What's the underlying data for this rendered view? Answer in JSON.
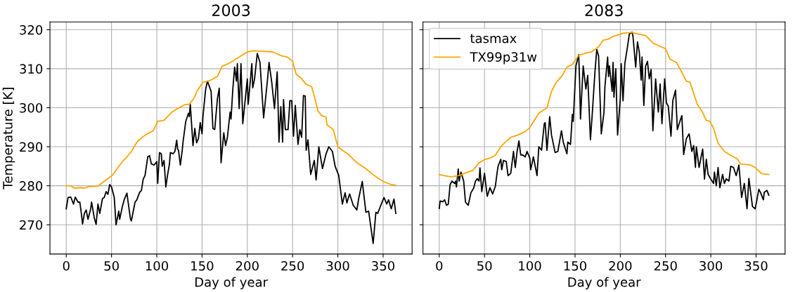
{
  "chart_data": [
    {
      "type": "line",
      "title": "2003",
      "xlabel": "Day of year",
      "ylabel": "Temperature [K]",
      "xlim": [
        -18,
        382
      ],
      "ylim": [
        262.5,
        322
      ],
      "xticks": [
        0,
        50,
        100,
        150,
        200,
        250,
        300,
        350
      ],
      "yticks": [
        270,
        280,
        290,
        300,
        310,
        320
      ],
      "grid": true,
      "series": [
        {
          "color": "#000000",
          "x": [
            0,
            2,
            5,
            8,
            10,
            13,
            15,
            17,
            18,
            20,
            22,
            24,
            27,
            28,
            31,
            33,
            35,
            37,
            40,
            42,
            44,
            46,
            48,
            50,
            53,
            54,
            55,
            58,
            59,
            62,
            64,
            67,
            69,
            71,
            72,
            74,
            76,
            78,
            81,
            83,
            85,
            87,
            90,
            92,
            94,
            97,
            100,
            101,
            103,
            105,
            106,
            108,
            110,
            112,
            114,
            115,
            118,
            120,
            122,
            123,
            124,
            126,
            128,
            129,
            132,
            135,
            136,
            137,
            140,
            142,
            144,
            146,
            148,
            150,
            151,
            154,
            156,
            160,
            162,
            164,
            167,
            169,
            171,
            174,
            176,
            178,
            181,
            182,
            184,
            186,
            188,
            189,
            191,
            193,
            195,
            200,
            201,
            205,
            206,
            208,
            211,
            214,
            218,
            222,
            224,
            227,
            230,
            233,
            235,
            237,
            239,
            240,
            242,
            245,
            247,
            249,
            251,
            253,
            256,
            258,
            260,
            262,
            264,
            265,
            267,
            270,
            274,
            276,
            279,
            283,
            287,
            290,
            294,
            297,
            301,
            305,
            308,
            310,
            313,
            317,
            321,
            323,
            327,
            331,
            334,
            339,
            342,
            344,
            348,
            351,
            354,
            356,
            359,
            362,
            364
          ],
          "values": [
            274.1,
            277,
            277.1,
            275.3,
            277.1,
            275.8,
            275.8,
            272.3,
            270.2,
            272.9,
            273.8,
            271.4,
            274.1,
            275.8,
            271.7,
            270.1,
            275.3,
            272.9,
            276.7,
            277,
            278.5,
            277.8,
            280.3,
            279.7,
            277,
            273.5,
            270,
            273.5,
            271.4,
            274.7,
            276.4,
            278.1,
            274.7,
            271.4,
            271,
            273.5,
            275.8,
            276.4,
            278.3,
            278.8,
            281.7,
            282.6,
            287.4,
            287.7,
            285.6,
            285.3,
            286.2,
            280.6,
            288.5,
            288.2,
            285,
            286.5,
            279.7,
            282.9,
            285.6,
            288.5,
            288.2,
            288.8,
            291.7,
            289.4,
            289.1,
            285.3,
            288.8,
            291.2,
            296.5,
            298.6,
            297.7,
            300.9,
            290.3,
            294.7,
            291,
            292.1,
            296.2,
            293.3,
            297.7,
            304.8,
            306.8,
            304.2,
            294.7,
            294.4,
            302.4,
            305,
            285.9,
            293.6,
            290.3,
            292.4,
            298.9,
            297.1,
            304.8,
            310.4,
            306.8,
            311.3,
            299.8,
            311.3,
            295.9,
            307.4,
            300.9,
            311.3,
            305.1,
            307.4,
            313.9,
            311.6,
            297.4,
            306.5,
            311.6,
            306.5,
            299.8,
            309.2,
            291.2,
            300.3,
            291.2,
            302.1,
            294.4,
            294.4,
            301.8,
            301.8,
            292.7,
            300.6,
            290.6,
            294.4,
            292.4,
            303.1,
            303,
            289.1,
            291.8,
            282.9,
            286.5,
            281.5,
            290,
            284.4,
            288.2,
            290,
            288.8,
            285,
            282.6,
            275.3,
            278.2,
            275.6,
            277.9,
            275,
            273.8,
            276.7,
            281.1,
            273.2,
            273.5,
            265.2,
            273.2,
            272.9,
            275.3,
            277,
            275.3,
            276.4,
            274.1,
            276.6,
            272.9
          ]
        },
        {
          "color": "#ffa500",
          "x": [
            0,
            5,
            9,
            15,
            20,
            25,
            35,
            40,
            47,
            51,
            55,
            62,
            67,
            72,
            75,
            79,
            85,
            91,
            96,
            101,
            108,
            113,
            117,
            123,
            131,
            136,
            141,
            145,
            151,
            159,
            167,
            172,
            179,
            187,
            195,
            200,
            206,
            215,
            228,
            232,
            238,
            244,
            250,
            254,
            259,
            265,
            271,
            274,
            278,
            282,
            287,
            288,
            295,
            300,
            305,
            312,
            317,
            323,
            331,
            337,
            346,
            351,
            359,
            364
          ],
          "values": [
            280,
            280,
            279.4,
            279.5,
            279.4,
            279.8,
            279.9,
            280.8,
            282,
            282.7,
            284,
            286.2,
            287.4,
            288.8,
            290,
            291.5,
            292.6,
            293.5,
            294.1,
            296.5,
            296.8,
            298,
            298.9,
            299.8,
            300.8,
            300.9,
            302.4,
            304.5,
            306.5,
            307,
            308,
            310.6,
            311.3,
            312.4,
            313.6,
            314.3,
            314.6,
            314.5,
            314.3,
            313.9,
            313.3,
            313,
            311.9,
            308.6,
            307.7,
            306,
            305.4,
            303,
            299.2,
            298,
            297.6,
            295.6,
            294.4,
            290,
            289.1,
            288,
            286.8,
            285.6,
            284.4,
            283.2,
            281.7,
            281,
            280.3,
            280.1
          ]
        }
      ]
    },
    {
      "type": "line",
      "title": "2083",
      "xlabel": "Day of year",
      "xlim": [
        -18,
        382
      ],
      "ylim": [
        262.5,
        322
      ],
      "xticks": [
        0,
        50,
        100,
        150,
        200,
        250,
        300,
        350
      ],
      "yticks": [
        270,
        280,
        290,
        300,
        310,
        320
      ],
      "tick_labels": "x",
      "grid": true,
      "legend": "top left",
      "series": [
        {
          "name": "tasmax",
          "color": "#000000",
          "x": [
            0,
            1,
            4,
            6,
            8,
            10,
            12,
            14,
            17,
            18,
            19,
            21,
            22,
            24,
            27,
            29,
            32,
            35,
            38,
            40,
            42,
            44,
            45,
            47,
            50,
            53,
            56,
            59,
            62,
            64,
            65,
            68,
            69,
            71,
            74,
            76,
            79,
            82,
            84,
            86,
            88,
            90,
            92,
            95,
            97,
            100,
            101,
            104,
            108,
            110,
            113,
            116,
            117,
            119,
            122,
            124,
            128,
            131,
            135,
            137,
            141,
            142,
            145,
            147,
            148,
            151,
            154,
            155,
            156,
            159,
            162,
            164,
            167,
            169,
            172,
            174,
            176,
            179,
            182,
            183,
            186,
            187,
            188,
            191,
            192,
            193,
            195,
            197,
            200,
            201,
            203,
            205,
            208,
            210,
            213,
            214,
            217,
            219,
            221,
            223,
            224,
            226,
            228,
            230,
            232,
            234,
            236,
            239,
            242,
            244,
            246,
            249,
            251,
            253,
            256,
            258,
            261,
            263,
            265,
            268,
            270,
            273,
            276,
            279,
            281,
            283,
            284,
            287,
            291,
            293,
            295,
            297,
            300,
            303,
            304,
            306,
            308,
            310,
            313,
            315,
            317,
            320,
            322,
            325,
            328,
            331,
            334,
            337,
            340,
            342,
            346,
            349,
            351,
            353,
            355,
            358,
            359,
            362,
            364
          ],
          "values": [
            274.2,
            276.1,
            275.9,
            276.4,
            275,
            275.3,
            280.3,
            281.2,
            280.6,
            281.2,
            279.7,
            284.3,
            281.2,
            283.5,
            281.2,
            275.8,
            275,
            278.2,
            279.4,
            281.2,
            281.8,
            281.2,
            284.6,
            278.5,
            283.2,
            277.3,
            279.5,
            277.9,
            279.9,
            283.5,
            285,
            286.8,
            284.1,
            286.5,
            286.2,
            282.6,
            283.2,
            288.8,
            284.7,
            288.8,
            291.5,
            287.9,
            287.9,
            287.4,
            288.8,
            287.1,
            284.1,
            287.4,
            282.6,
            290,
            289.1,
            295.9,
            296.2,
            289.1,
            297.7,
            293,
            288.5,
            288.8,
            294.1,
            291.2,
            288.2,
            291.2,
            290.6,
            298.3,
            296.5,
            310.7,
            313.6,
            307.1,
            297.1,
            310.7,
            304.8,
            308.3,
            291.8,
            298.3,
            309.2,
            314.9,
            313.3,
            293.3,
            298.9,
            305.4,
            313,
            308,
            310.7,
            304.2,
            311.6,
            302.7,
            310,
            293,
            302.4,
            311.3,
            301.8,
            311.3,
            315.7,
            318.9,
            319.4,
            318.3,
            310.4,
            316.9,
            314.2,
            307.1,
            313,
            300.6,
            310.7,
            311.9,
            307.4,
            309.8,
            294.1,
            307.4,
            298.9,
            306.1,
            295.9,
            307.4,
            301.2,
            300.4,
            292.7,
            301.8,
            304.5,
            294.4,
            295.9,
            298,
            288,
            292.1,
            293.3,
            288.8,
            290.3,
            284.7,
            290,
            284.7,
            289.4,
            281.7,
            286.8,
            282.9,
            281.7,
            280.6,
            283.5,
            280,
            284.7,
            279.5,
            282.9,
            280.6,
            281.8,
            281.2,
            285,
            284.7,
            282.6,
            285.3,
            277,
            280.6,
            274.1,
            281.9,
            274.7,
            274.1,
            276.5,
            279.1,
            278.2,
            276.4,
            278.3,
            278.8,
            277.6
          ]
        },
        {
          "name": "TX99p31w",
          "color": "#ffa500",
          "x": [
            0,
            5,
            13,
            22,
            28,
            37,
            44,
            50,
            56,
            62,
            68,
            73,
            79,
            87,
            95,
            100,
            110,
            119,
            124,
            129,
            136,
            141,
            147,
            154,
            163,
            168,
            176,
            181,
            187,
            191,
            203,
            213,
            219,
            228,
            236,
            250,
            255,
            262,
            267,
            273,
            277,
            285,
            290,
            295,
            299,
            303,
            308,
            315,
            322,
            329,
            333,
            344,
            349,
            356,
            364
          ],
          "values": [
            282.9,
            282.6,
            282.3,
            282.6,
            283.2,
            283.9,
            285.9,
            286.7,
            287.1,
            287.8,
            290,
            291.2,
            292.4,
            293,
            293.9,
            294.9,
            298.6,
            300,
            304.2,
            306.4,
            308.3,
            310.4,
            311.1,
            313.4,
            314.1,
            314.3,
            315.6,
            317.3,
            317.6,
            318.2,
            319.1,
            319.3,
            318.9,
            318.5,
            316.6,
            315.1,
            312.4,
            311.6,
            309.5,
            306.8,
            306.5,
            300.9,
            299.2,
            296.8,
            296.5,
            294.7,
            290.9,
            288.8,
            287.8,
            286.9,
            285.6,
            285.3,
            284.7,
            283.1,
            282.9
          ]
        }
      ]
    }
  ]
}
